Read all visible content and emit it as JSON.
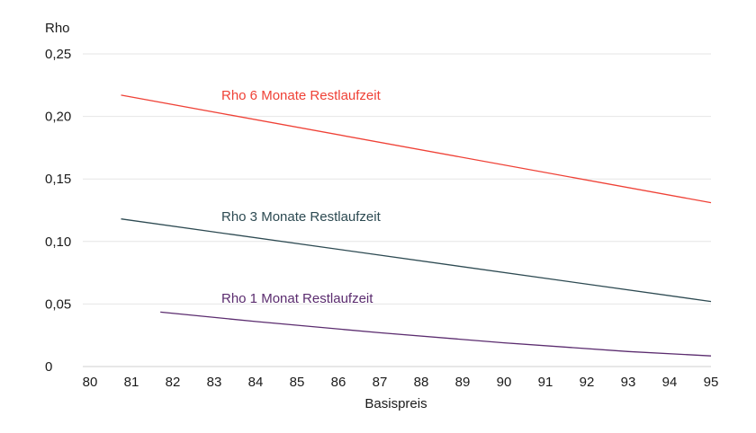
{
  "chart_data": {
    "type": "line",
    "ylabel": "Rho",
    "xlabel": "Basispreis",
    "xlim": [
      80,
      95
    ],
    "ylim": [
      0,
      0.25
    ],
    "x_ticks": [
      "80",
      "81",
      "82",
      "83",
      "84",
      "85",
      "86",
      "87",
      "88",
      "89",
      "90",
      "91",
      "92",
      "93",
      "94",
      "95"
    ],
    "x_tick_values": [
      80,
      81,
      82,
      83,
      84,
      85,
      86,
      87,
      88,
      89,
      90,
      91,
      92,
      93,
      94,
      95
    ],
    "y_ticks": [
      "0",
      "0,05",
      "0,10",
      "0,15",
      "0,20",
      "0,25"
    ],
    "y_tick_values": [
      0,
      0.05,
      0.1,
      0.15,
      0.2,
      0.25
    ],
    "grid": true,
    "series": [
      {
        "name": "Rho 6 Monate Restlaufzeit",
        "color": "#ef4136",
        "x": [
          80.75,
          95
        ],
        "y": [
          0.217,
          0.131
        ]
      },
      {
        "name": "Rho 3 Monate Restlaufzeit",
        "color": "#2d4a52",
        "x": [
          80.75,
          95
        ],
        "y": [
          0.118,
          0.052
        ]
      },
      {
        "name": "Rho 1 Monat Restlaufzeit",
        "color": "#5b2c6f",
        "x": [
          81.7,
          84,
          87,
          90,
          93,
          95
        ],
        "y": [
          0.0435,
          0.036,
          0.027,
          0.019,
          0.012,
          0.0085
        ]
      }
    ]
  }
}
